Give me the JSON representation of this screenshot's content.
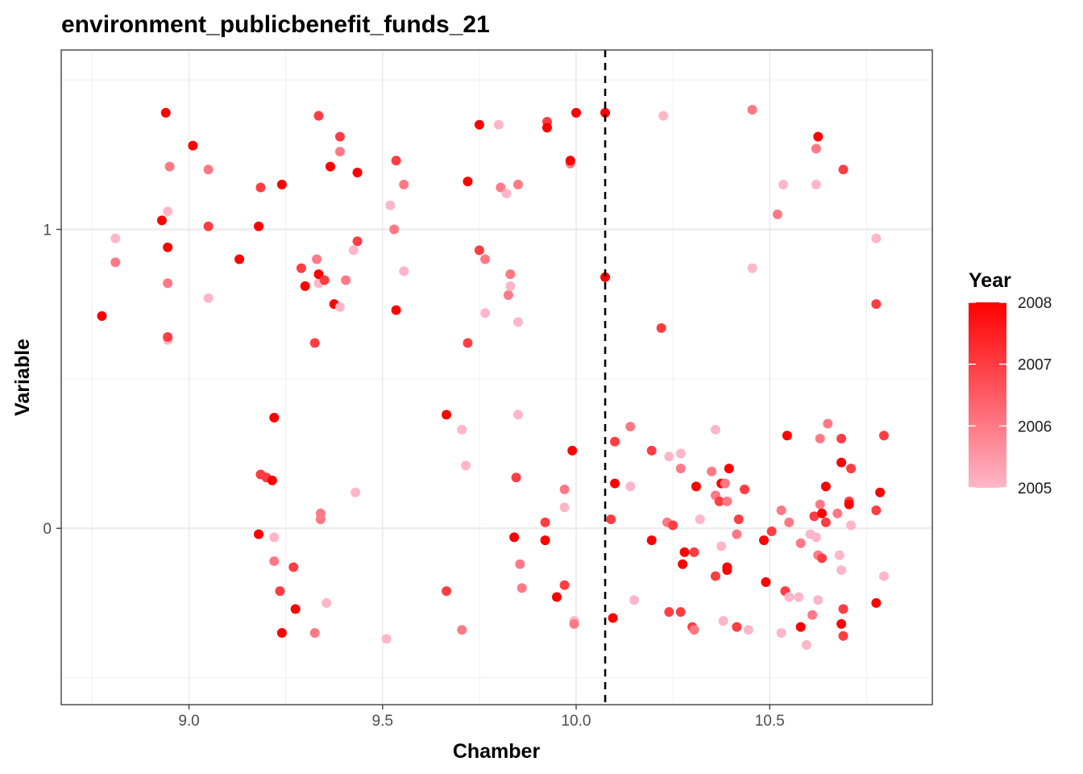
{
  "chart_data": {
    "type": "scatter",
    "title": "environment_publicbenefit_funds_21",
    "xlabel": "Chamber",
    "ylabel": "Variable",
    "xlim": [
      8.67,
      10.92
    ],
    "ylim": [
      -0.59,
      1.6
    ],
    "x_ticks": [
      {
        "value": 9.0,
        "label": "9.0"
      },
      {
        "value": 9.5,
        "label": "9.5"
      },
      {
        "value": 10.0,
        "label": "10.0"
      },
      {
        "value": 10.5,
        "label": "10.5"
      }
    ],
    "y_ticks": [
      {
        "value": 0,
        "label": "0"
      },
      {
        "value": 1,
        "label": "1"
      }
    ],
    "vline": 10.075,
    "grid": true,
    "legend": {
      "title": "Year",
      "position": "right",
      "type": "colorbar",
      "min": 2005,
      "max": 2008,
      "low_color": "#ffb6c8",
      "high_color": "#ff0000",
      "ticks": [
        {
          "value": 2008,
          "label": "2008"
        },
        {
          "value": 2007,
          "label": "2007"
        },
        {
          "value": 2006,
          "label": "2006"
        },
        {
          "value": 2005,
          "label": "2005"
        }
      ]
    },
    "points": [
      {
        "x": 8.775,
        "y": 0.71,
        "year": 2008
      },
      {
        "x": 8.81,
        "y": 0.97,
        "year": 2005
      },
      {
        "x": 8.81,
        "y": 0.89,
        "year": 2006
      },
      {
        "x": 8.93,
        "y": 1.03,
        "year": 2008
      },
      {
        "x": 8.94,
        "y": 1.39,
        "year": 2008
      },
      {
        "x": 8.945,
        "y": 1.06,
        "year": 2005
      },
      {
        "x": 8.945,
        "y": 0.82,
        "year": 2006
      },
      {
        "x": 8.945,
        "y": 0.94,
        "year": 2008
      },
      {
        "x": 8.95,
        "y": 1.21,
        "year": 2006
      },
      {
        "x": 8.945,
        "y": 0.63,
        "year": 2005
      },
      {
        "x": 8.945,
        "y": 0.64,
        "year": 2007
      },
      {
        "x": 9.01,
        "y": 1.28,
        "year": 2008
      },
      {
        "x": 9.05,
        "y": 1.2,
        "year": 2006
      },
      {
        "x": 9.05,
        "y": 1.01,
        "year": 2007
      },
      {
        "x": 9.05,
        "y": 0.77,
        "year": 2005
      },
      {
        "x": 9.13,
        "y": 0.9,
        "year": 2008
      },
      {
        "x": 9.18,
        "y": 1.01,
        "year": 2008
      },
      {
        "x": 9.185,
        "y": 1.14,
        "year": 2007
      },
      {
        "x": 9.24,
        "y": 1.15,
        "year": 2008
      },
      {
        "x": 9.185,
        "y": 0.18,
        "year": 2007
      },
      {
        "x": 9.2,
        "y": 0.17,
        "year": 2007
      },
      {
        "x": 9.215,
        "y": 0.16,
        "year": 2008
      },
      {
        "x": 9.22,
        "y": 0.37,
        "year": 2008
      },
      {
        "x": 9.18,
        "y": -0.02,
        "year": 2008
      },
      {
        "x": 9.22,
        "y": -0.03,
        "year": 2005
      },
      {
        "x": 9.22,
        "y": -0.11,
        "year": 2006
      },
      {
        "x": 9.235,
        "y": -0.21,
        "year": 2007
      },
      {
        "x": 9.24,
        "y": -0.35,
        "year": 2008
      },
      {
        "x": 9.27,
        "y": -0.13,
        "year": 2007
      },
      {
        "x": 9.275,
        "y": -0.27,
        "year": 2008
      },
      {
        "x": 9.325,
        "y": -0.35,
        "year": 2006
      },
      {
        "x": 9.29,
        "y": 0.87,
        "year": 2007
      },
      {
        "x": 9.3,
        "y": 0.81,
        "year": 2008
      },
      {
        "x": 9.325,
        "y": 0.62,
        "year": 2007
      },
      {
        "x": 9.33,
        "y": 0.9,
        "year": 2006
      },
      {
        "x": 9.335,
        "y": 0.82,
        "year": 2005
      },
      {
        "x": 9.335,
        "y": 0.85,
        "year": 2008
      },
      {
        "x": 9.35,
        "y": 0.83,
        "year": 2007
      },
      {
        "x": 9.335,
        "y": 1.38,
        "year": 2007
      },
      {
        "x": 9.365,
        "y": 1.21,
        "year": 2008
      },
      {
        "x": 9.39,
        "y": 1.26,
        "year": 2006
      },
      {
        "x": 9.39,
        "y": 1.31,
        "year": 2007
      },
      {
        "x": 9.375,
        "y": 0.75,
        "year": 2008
      },
      {
        "x": 9.39,
        "y": 0.74,
        "year": 2005
      },
      {
        "x": 9.405,
        "y": 0.83,
        "year": 2006
      },
      {
        "x": 9.425,
        "y": 0.93,
        "year": 2005
      },
      {
        "x": 9.435,
        "y": 0.96,
        "year": 2007
      },
      {
        "x": 9.435,
        "y": 1.19,
        "year": 2008
      },
      {
        "x": 9.34,
        "y": 0.05,
        "year": 2006
      },
      {
        "x": 9.34,
        "y": 0.03,
        "year": 2006
      },
      {
        "x": 9.355,
        "y": -0.25,
        "year": 2005
      },
      {
        "x": 9.43,
        "y": 0.12,
        "year": 2005
      },
      {
        "x": 9.51,
        "y": -0.37,
        "year": 2005
      },
      {
        "x": 9.52,
        "y": 1.08,
        "year": 2005
      },
      {
        "x": 9.53,
        "y": 1.0,
        "year": 2006
      },
      {
        "x": 9.535,
        "y": 1.23,
        "year": 2007
      },
      {
        "x": 9.535,
        "y": 0.73,
        "year": 2008
      },
      {
        "x": 9.555,
        "y": 1.15,
        "year": 2006
      },
      {
        "x": 9.555,
        "y": 0.86,
        "year": 2005
      },
      {
        "x": 9.665,
        "y": 0.38,
        "year": 2008
      },
      {
        "x": 9.665,
        "y": -0.21,
        "year": 2007
      },
      {
        "x": 9.705,
        "y": 0.33,
        "year": 2005
      },
      {
        "x": 9.705,
        "y": -0.34,
        "year": 2006
      },
      {
        "x": 9.715,
        "y": 0.21,
        "year": 2005
      },
      {
        "x": 9.72,
        "y": 0.62,
        "year": 2007
      },
      {
        "x": 9.72,
        "y": 1.16,
        "year": 2008
      },
      {
        "x": 9.75,
        "y": 1.35,
        "year": 2008
      },
      {
        "x": 9.75,
        "y": 0.93,
        "year": 2007
      },
      {
        "x": 9.765,
        "y": 0.9,
        "year": 2006
      },
      {
        "x": 9.765,
        "y": 0.72,
        "year": 2005
      },
      {
        "x": 9.8,
        "y": 1.35,
        "year": 2005
      },
      {
        "x": 9.805,
        "y": 1.14,
        "year": 2006
      },
      {
        "x": 9.82,
        "y": 1.12,
        "year": 2005
      },
      {
        "x": 9.825,
        "y": 0.78,
        "year": 2006
      },
      {
        "x": 9.83,
        "y": 0.85,
        "year": 2006
      },
      {
        "x": 9.83,
        "y": 0.81,
        "year": 2005
      },
      {
        "x": 9.85,
        "y": 1.15,
        "year": 2006
      },
      {
        "x": 9.85,
        "y": 0.69,
        "year": 2005
      },
      {
        "x": 9.85,
        "y": 0.38,
        "year": 2005
      },
      {
        "x": 9.845,
        "y": 0.17,
        "year": 2007
      },
      {
        "x": 9.84,
        "y": -0.03,
        "year": 2008
      },
      {
        "x": 9.855,
        "y": -0.12,
        "year": 2006
      },
      {
        "x": 9.86,
        "y": -0.2,
        "year": 2006
      },
      {
        "x": 9.92,
        "y": 0.02,
        "year": 2007
      },
      {
        "x": 9.92,
        "y": -0.04,
        "year": 2008
      },
      {
        "x": 9.925,
        "y": 1.36,
        "year": 2007
      },
      {
        "x": 9.925,
        "y": 1.34,
        "year": 2008
      },
      {
        "x": 9.95,
        "y": -0.23,
        "year": 2008
      },
      {
        "x": 9.97,
        "y": 0.13,
        "year": 2006
      },
      {
        "x": 9.97,
        "y": 0.07,
        "year": 2005
      },
      {
        "x": 9.97,
        "y": -0.19,
        "year": 2007
      },
      {
        "x": 9.985,
        "y": 1.22,
        "year": 2006
      },
      {
        "x": 9.985,
        "y": 1.23,
        "year": 2008
      },
      {
        "x": 9.99,
        "y": 0.26,
        "year": 2008
      },
      {
        "x": 9.995,
        "y": -0.31,
        "year": 2005
      },
      {
        "x": 9.995,
        "y": -0.32,
        "year": 2006
      },
      {
        "x": 10.0,
        "y": 1.39,
        "year": 2006
      },
      {
        "x": 10.0,
        "y": 1.39,
        "year": 2008
      },
      {
        "x": 10.075,
        "y": 1.39,
        "year": 2008
      },
      {
        "x": 10.075,
        "y": 0.84,
        "year": 2008
      },
      {
        "x": 10.09,
        "y": 0.03,
        "year": 2007
      },
      {
        "x": 10.095,
        "y": -0.3,
        "year": 2008
      },
      {
        "x": 10.1,
        "y": 0.29,
        "year": 2007
      },
      {
        "x": 10.1,
        "y": 0.15,
        "year": 2008
      },
      {
        "x": 10.14,
        "y": 0.34,
        "year": 2006
      },
      {
        "x": 10.14,
        "y": 0.14,
        "year": 2005
      },
      {
        "x": 10.15,
        "y": -0.24,
        "year": 2005
      },
      {
        "x": 10.195,
        "y": 0.26,
        "year": 2007
      },
      {
        "x": 10.195,
        "y": -0.04,
        "year": 2008
      },
      {
        "x": 10.225,
        "y": 1.38,
        "year": 2005
      },
      {
        "x": 10.22,
        "y": 0.67,
        "year": 2007
      },
      {
        "x": 10.235,
        "y": 0.02,
        "year": 2006
      },
      {
        "x": 10.24,
        "y": 0.24,
        "year": 2005
      },
      {
        "x": 10.24,
        "y": -0.28,
        "year": 2007
      },
      {
        "x": 10.25,
        "y": 0.01,
        "year": 2007
      },
      {
        "x": 10.27,
        "y": 0.25,
        "year": 2005
      },
      {
        "x": 10.27,
        "y": 0.2,
        "year": 2006
      },
      {
        "x": 10.27,
        "y": -0.28,
        "year": 2007
      },
      {
        "x": 10.275,
        "y": -0.12,
        "year": 2008
      },
      {
        "x": 10.28,
        "y": -0.08,
        "year": 2008
      },
      {
        "x": 10.3,
        "y": -0.33,
        "year": 2007
      },
      {
        "x": 10.305,
        "y": -0.08,
        "year": 2007
      },
      {
        "x": 10.305,
        "y": -0.34,
        "year": 2006
      },
      {
        "x": 10.31,
        "y": 0.14,
        "year": 2008
      },
      {
        "x": 10.32,
        "y": 0.03,
        "year": 2005
      },
      {
        "x": 10.35,
        "y": 0.19,
        "year": 2006
      },
      {
        "x": 10.36,
        "y": 0.33,
        "year": 2005
      },
      {
        "x": 10.36,
        "y": 0.11,
        "year": 2006
      },
      {
        "x": 10.36,
        "y": -0.16,
        "year": 2007
      },
      {
        "x": 10.37,
        "y": 0.09,
        "year": 2007
      },
      {
        "x": 10.375,
        "y": -0.06,
        "year": 2005
      },
      {
        "x": 10.375,
        "y": 0.15,
        "year": 2008
      },
      {
        "x": 10.38,
        "y": -0.31,
        "year": 2005
      },
      {
        "x": 10.385,
        "y": 0.15,
        "year": 2006
      },
      {
        "x": 10.39,
        "y": 0.09,
        "year": 2006
      },
      {
        "x": 10.39,
        "y": -0.13,
        "year": 2008
      },
      {
        "x": 10.39,
        "y": -0.14,
        "year": 2008
      },
      {
        "x": 10.395,
        "y": 0.2,
        "year": 2008
      },
      {
        "x": 10.415,
        "y": -0.02,
        "year": 2006
      },
      {
        "x": 10.415,
        "y": -0.33,
        "year": 2007
      },
      {
        "x": 10.42,
        "y": 0.03,
        "year": 2007
      },
      {
        "x": 10.435,
        "y": 0.13,
        "year": 2007
      },
      {
        "x": 10.445,
        "y": -0.34,
        "year": 2005
      },
      {
        "x": 10.455,
        "y": 1.4,
        "year": 2006
      },
      {
        "x": 10.455,
        "y": 0.87,
        "year": 2005
      },
      {
        "x": 10.485,
        "y": -0.04,
        "year": 2008
      },
      {
        "x": 10.49,
        "y": -0.18,
        "year": 2008
      },
      {
        "x": 10.505,
        "y": -0.01,
        "year": 2007
      },
      {
        "x": 10.52,
        "y": 1.05,
        "year": 2006
      },
      {
        "x": 10.53,
        "y": 0.06,
        "year": 2006
      },
      {
        "x": 10.53,
        "y": -0.35,
        "year": 2005
      },
      {
        "x": 10.535,
        "y": 1.15,
        "year": 2005
      },
      {
        "x": 10.54,
        "y": -0.21,
        "year": 2007
      },
      {
        "x": 10.545,
        "y": 0.31,
        "year": 2008
      },
      {
        "x": 10.55,
        "y": -0.23,
        "year": 2005
      },
      {
        "x": 10.55,
        "y": 0.02,
        "year": 2006
      },
      {
        "x": 10.575,
        "y": -0.23,
        "year": 2005
      },
      {
        "x": 10.58,
        "y": -0.33,
        "year": 2008
      },
      {
        "x": 10.58,
        "y": -0.05,
        "year": 2006
      },
      {
        "x": 10.595,
        "y": -0.39,
        "year": 2005
      },
      {
        "x": 10.605,
        "y": -0.02,
        "year": 2005
      },
      {
        "x": 10.61,
        "y": -0.29,
        "year": 2006
      },
      {
        "x": 10.615,
        "y": 0.04,
        "year": 2007
      },
      {
        "x": 10.62,
        "y": 1.27,
        "year": 2006
      },
      {
        "x": 10.625,
        "y": 1.31,
        "year": 2008
      },
      {
        "x": 10.62,
        "y": 1.15,
        "year": 2005
      },
      {
        "x": 10.62,
        "y": -0.03,
        "year": 2005
      },
      {
        "x": 10.625,
        "y": -0.24,
        "year": 2005
      },
      {
        "x": 10.625,
        "y": -0.09,
        "year": 2006
      },
      {
        "x": 10.63,
        "y": 0.3,
        "year": 2006
      },
      {
        "x": 10.63,
        "y": 0.08,
        "year": 2006
      },
      {
        "x": 10.635,
        "y": 0.05,
        "year": 2008
      },
      {
        "x": 10.635,
        "y": -0.1,
        "year": 2007
      },
      {
        "x": 10.645,
        "y": 0.14,
        "year": 2008
      },
      {
        "x": 10.645,
        "y": 0.02,
        "year": 2007
      },
      {
        "x": 10.65,
        "y": 0.35,
        "year": 2006
      },
      {
        "x": 10.675,
        "y": 0.05,
        "year": 2006
      },
      {
        "x": 10.68,
        "y": -0.09,
        "year": 2005
      },
      {
        "x": 10.685,
        "y": 0.3,
        "year": 2007
      },
      {
        "x": 10.685,
        "y": -0.14,
        "year": 2005
      },
      {
        "x": 10.685,
        "y": 0.22,
        "year": 2008
      },
      {
        "x": 10.69,
        "y": 1.2,
        "year": 2007
      },
      {
        "x": 10.685,
        "y": -0.32,
        "year": 2008
      },
      {
        "x": 10.69,
        "y": -0.36,
        "year": 2007
      },
      {
        "x": 10.69,
        "y": -0.27,
        "year": 2007
      },
      {
        "x": 10.705,
        "y": 0.09,
        "year": 2007
      },
      {
        "x": 10.705,
        "y": 0.08,
        "year": 2008
      },
      {
        "x": 10.71,
        "y": 0.2,
        "year": 2007
      },
      {
        "x": 10.71,
        "y": 0.01,
        "year": 2005
      },
      {
        "x": 10.775,
        "y": 0.97,
        "year": 2005
      },
      {
        "x": 10.775,
        "y": 0.75,
        "year": 2007
      },
      {
        "x": 10.775,
        "y": 0.06,
        "year": 2007
      },
      {
        "x": 10.775,
        "y": -0.25,
        "year": 2008
      },
      {
        "x": 10.785,
        "y": 0.12,
        "year": 2008
      },
      {
        "x": 10.795,
        "y": 0.31,
        "year": 2007
      },
      {
        "x": 10.795,
        "y": -0.16,
        "year": 2005
      }
    ]
  }
}
